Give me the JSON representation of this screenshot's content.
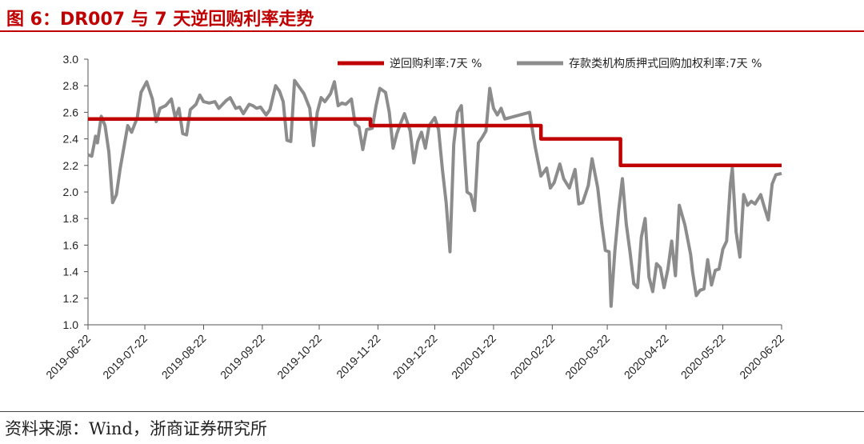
{
  "header": {
    "title": "图 6：DR007 与 7 天逆回购利率走势"
  },
  "footer": {
    "source": "资料来源：Wind，浙商证券研究所"
  },
  "colors": {
    "accent": "#c00000",
    "series_red": "#c00000",
    "series_gray": "#8c8c8c"
  },
  "chart_data": {
    "type": "line",
    "title": "",
    "xlabel": "",
    "ylabel": "",
    "ylim": [
      1.0,
      3.0
    ],
    "yticks": [
      "1.0",
      "1.2",
      "1.4",
      "1.6",
      "1.8",
      "2.0",
      "2.2",
      "2.4",
      "2.6",
      "2.8",
      "3.0"
    ],
    "x_ticks": [
      "2019-06-22",
      "2019-07-22",
      "2019-08-22",
      "2019-09-22",
      "2019-10-22",
      "2019-11-22",
      "2019-12-22",
      "2020-01-22",
      "2020-02-22",
      "2020-03-22",
      "2020-04-22",
      "2020-05-22",
      "2020-06-22"
    ],
    "grid": false,
    "legend": "top-right",
    "series": [
      {
        "name": "逆回购利率:7天 %",
        "color": "#c00000",
        "points": [
          [
            "2019-06-22",
            2.55
          ],
          [
            "2019-11-18",
            2.55
          ],
          [
            "2019-11-18",
            2.5
          ],
          [
            "2020-02-16",
            2.5
          ],
          [
            "2020-02-16",
            2.4
          ],
          [
            "2020-03-29",
            2.4
          ],
          [
            "2020-03-29",
            2.2
          ],
          [
            "2020-06-22",
            2.2
          ]
        ]
      },
      {
        "name": "存款类机构质押式回购加权利率:7天 %",
        "color": "#8c8c8c",
        "points": [
          [
            "2019-06-22",
            2.28
          ],
          [
            "2019-06-24",
            2.27
          ],
          [
            "2019-06-26",
            2.42
          ],
          [
            "2019-06-27",
            2.37
          ],
          [
            "2019-06-29",
            2.57
          ],
          [
            "2019-07-01",
            2.5
          ],
          [
            "2019-07-03",
            2.3
          ],
          [
            "2019-07-05",
            1.92
          ],
          [
            "2019-07-07",
            1.98
          ],
          [
            "2019-07-09",
            2.18
          ],
          [
            "2019-07-13",
            2.5
          ],
          [
            "2019-07-15",
            2.45
          ],
          [
            "2019-07-18",
            2.56
          ],
          [
            "2019-07-20",
            2.75
          ],
          [
            "2019-07-23",
            2.83
          ],
          [
            "2019-07-26",
            2.7
          ],
          [
            "2019-07-28",
            2.53
          ],
          [
            "2019-07-30",
            2.63
          ],
          [
            "2019-08-02",
            2.65
          ],
          [
            "2019-08-05",
            2.7
          ],
          [
            "2019-08-07",
            2.56
          ],
          [
            "2019-08-09",
            2.63
          ],
          [
            "2019-08-11",
            2.44
          ],
          [
            "2019-08-13",
            2.43
          ],
          [
            "2019-08-15",
            2.62
          ],
          [
            "2019-08-18",
            2.66
          ],
          [
            "2019-08-20",
            2.73
          ],
          [
            "2019-08-22",
            2.68
          ],
          [
            "2019-08-25",
            2.67
          ],
          [
            "2019-08-28",
            2.68
          ],
          [
            "2019-08-30",
            2.63
          ],
          [
            "2019-09-03",
            2.69
          ],
          [
            "2019-09-05",
            2.71
          ],
          [
            "2019-09-08",
            2.63
          ],
          [
            "2019-09-10",
            2.64
          ],
          [
            "2019-09-12",
            2.59
          ],
          [
            "2019-09-15",
            2.66
          ],
          [
            "2019-09-17",
            2.65
          ],
          [
            "2019-09-19",
            2.63
          ],
          [
            "2019-09-21",
            2.64
          ],
          [
            "2019-09-24",
            2.58
          ],
          [
            "2019-09-26",
            2.62
          ],
          [
            "2019-09-29",
            2.8
          ],
          [
            "2019-10-01",
            2.76
          ],
          [
            "2019-10-03",
            2.68
          ],
          [
            "2019-10-05",
            2.39
          ],
          [
            "2019-10-07",
            2.38
          ],
          [
            "2019-10-09",
            2.84
          ],
          [
            "2019-10-12",
            2.78
          ],
          [
            "2019-10-14",
            2.74
          ],
          [
            "2019-10-17",
            2.63
          ],
          [
            "2019-10-19",
            2.35
          ],
          [
            "2019-10-21",
            2.6
          ],
          [
            "2019-10-23",
            2.71
          ],
          [
            "2019-10-25",
            2.68
          ],
          [
            "2019-10-28",
            2.74
          ],
          [
            "2019-10-30",
            2.83
          ],
          [
            "2019-11-01",
            2.65
          ],
          [
            "2019-11-03",
            2.67
          ],
          [
            "2019-11-05",
            2.66
          ],
          [
            "2019-11-08",
            2.7
          ],
          [
            "2019-11-10",
            2.51
          ],
          [
            "2019-11-12",
            2.49
          ],
          [
            "2019-11-14",
            2.32
          ],
          [
            "2019-11-16",
            2.47
          ],
          [
            "2019-11-19",
            2.48
          ],
          [
            "2019-11-21",
            2.65
          ],
          [
            "2019-11-23",
            2.78
          ],
          [
            "2019-11-26",
            2.75
          ],
          [
            "2019-11-28",
            2.6
          ],
          [
            "2019-11-30",
            2.33
          ],
          [
            "2019-12-02",
            2.44
          ],
          [
            "2019-12-04",
            2.52
          ],
          [
            "2019-12-06",
            2.59
          ],
          [
            "2019-12-09",
            2.46
          ],
          [
            "2019-12-11",
            2.22
          ],
          [
            "2019-12-13",
            2.38
          ],
          [
            "2019-12-15",
            2.45
          ],
          [
            "2019-12-17",
            2.33
          ],
          [
            "2019-12-19",
            2.5
          ],
          [
            "2019-12-22",
            2.56
          ],
          [
            "2019-12-24",
            2.47
          ],
          [
            "2019-12-26",
            2.17
          ],
          [
            "2019-12-28",
            1.92
          ],
          [
            "2019-12-30",
            1.55
          ],
          [
            "2020-01-01",
            2.36
          ],
          [
            "2020-01-03",
            2.6
          ],
          [
            "2020-01-05",
            2.65
          ],
          [
            "2020-01-08",
            2.0
          ],
          [
            "2020-01-10",
            1.98
          ],
          [
            "2020-01-12",
            1.86
          ],
          [
            "2020-01-14",
            2.37
          ],
          [
            "2020-01-16",
            2.41
          ],
          [
            "2020-01-18",
            2.46
          ],
          [
            "2020-01-20",
            2.78
          ],
          [
            "2020-01-22",
            2.63
          ],
          [
            "2020-01-24",
            2.58
          ],
          [
            "2020-01-26",
            2.63
          ],
          [
            "2020-01-28",
            2.55
          ],
          [
            "2020-02-10",
            2.6
          ],
          [
            "2020-02-13",
            2.34
          ],
          [
            "2020-02-16",
            2.12
          ],
          [
            "2020-02-19",
            2.18
          ],
          [
            "2020-02-21",
            2.03
          ],
          [
            "2020-02-23",
            2.07
          ],
          [
            "2020-02-26",
            2.21
          ],
          [
            "2020-02-28",
            2.1
          ],
          [
            "2020-03-02",
            2.03
          ],
          [
            "2020-03-05",
            2.17
          ],
          [
            "2020-03-07",
            1.91
          ],
          [
            "2020-03-09",
            1.92
          ],
          [
            "2020-03-12",
            2.05
          ],
          [
            "2020-03-14",
            2.25
          ],
          [
            "2020-03-17",
            2.03
          ],
          [
            "2020-03-19",
            1.77
          ],
          [
            "2020-03-21",
            1.56
          ],
          [
            "2020-03-23",
            1.55
          ],
          [
            "2020-03-24",
            1.14
          ],
          [
            "2020-03-26",
            1.55
          ],
          [
            "2020-03-28",
            1.86
          ],
          [
            "2020-03-30",
            2.1
          ],
          [
            "2020-04-01",
            1.76
          ],
          [
            "2020-04-03",
            1.55
          ],
          [
            "2020-04-05",
            1.31
          ],
          [
            "2020-04-07",
            1.28
          ],
          [
            "2020-04-09",
            1.66
          ],
          [
            "2020-04-11",
            1.8
          ],
          [
            "2020-04-13",
            1.36
          ],
          [
            "2020-04-15",
            1.25
          ],
          [
            "2020-04-17",
            1.46
          ],
          [
            "2020-04-19",
            1.43
          ],
          [
            "2020-04-21",
            1.28
          ],
          [
            "2020-04-23",
            1.42
          ],
          [
            "2020-04-25",
            1.63
          ],
          [
            "2020-04-27",
            1.37
          ],
          [
            "2020-04-29",
            1.9
          ],
          [
            "2020-05-02",
            1.75
          ],
          [
            "2020-05-05",
            1.53
          ],
          [
            "2020-05-06",
            1.4
          ],
          [
            "2020-05-08",
            1.22
          ],
          [
            "2020-05-10",
            1.26
          ],
          [
            "2020-05-12",
            1.27
          ],
          [
            "2020-05-14",
            1.49
          ],
          [
            "2020-05-16",
            1.3
          ],
          [
            "2020-05-18",
            1.41
          ],
          [
            "2020-05-20",
            1.42
          ],
          [
            "2020-05-22",
            1.57
          ],
          [
            "2020-05-24",
            1.63
          ],
          [
            "2020-05-26",
            2.06
          ],
          [
            "2020-05-27",
            2.18
          ],
          [
            "2020-05-29",
            1.7
          ],
          [
            "2020-05-31",
            1.51
          ],
          [
            "2020-06-02",
            1.98
          ],
          [
            "2020-06-04",
            1.9
          ],
          [
            "2020-06-06",
            1.93
          ],
          [
            "2020-06-08",
            1.91
          ],
          [
            "2020-06-11",
            1.98
          ],
          [
            "2020-06-13",
            1.88
          ],
          [
            "2020-06-15",
            1.79
          ],
          [
            "2020-06-17",
            2.06
          ],
          [
            "2020-06-19",
            2.13
          ],
          [
            "2020-06-22",
            2.14
          ]
        ]
      }
    ]
  }
}
